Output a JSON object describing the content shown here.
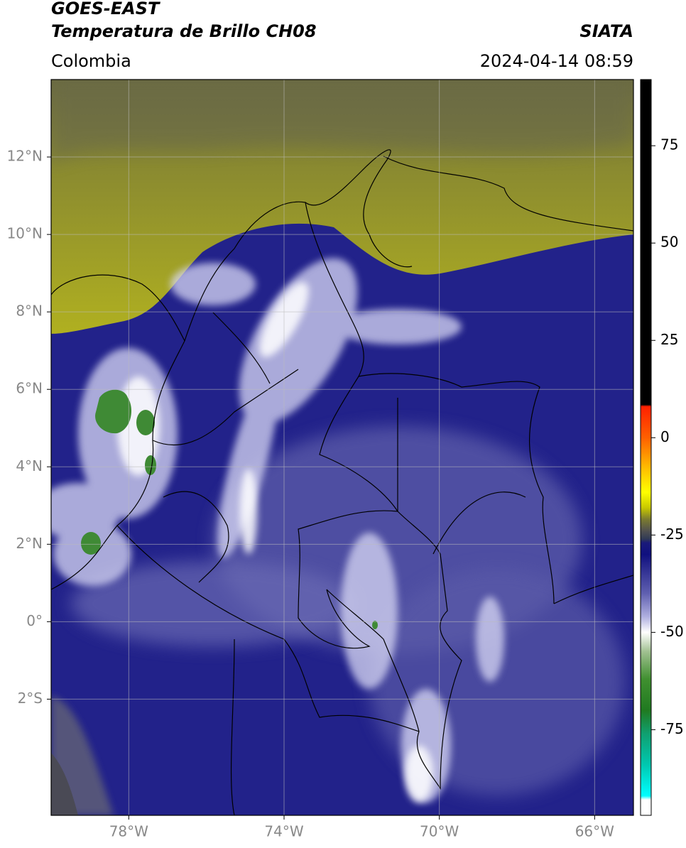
{
  "header": {
    "title": "GOES-EAST",
    "subtitle": "Temperatura de Brillo CH08",
    "source": "SIATA",
    "region": "Colombia",
    "timestamp": "2024-04-14 08:59"
  },
  "map": {
    "xlim": [
      -80,
      -65
    ],
    "ylim": [
      -5,
      14
    ],
    "xticks": [
      {
        "value": -78,
        "label": "78°W"
      },
      {
        "value": -74,
        "label": "74°W"
      },
      {
        "value": -70,
        "label": "70°W"
      },
      {
        "value": -66,
        "label": "66°W"
      }
    ],
    "yticks": [
      {
        "value": 12,
        "label": "12°N"
      },
      {
        "value": 10,
        "label": "10°N"
      },
      {
        "value": 8,
        "label": "8°N"
      },
      {
        "value": 6,
        "label": "6°N"
      },
      {
        "value": 4,
        "label": "4°N"
      },
      {
        "value": 2,
        "label": "2°N"
      },
      {
        "value": 0,
        "label": "0°"
      },
      {
        "value": -2,
        "label": "2°S"
      }
    ],
    "grid": true
  },
  "colorbar": {
    "clim": [
      -97,
      92
    ],
    "ticks": [
      75,
      50,
      25,
      0,
      -25,
      -50,
      -75
    ],
    "colormap": [
      {
        "value": 92,
        "color": "#000000"
      },
      {
        "value": 8.5,
        "color": "#000000"
      },
      {
        "value": 8,
        "color": "#ff2000"
      },
      {
        "value": 0,
        "color": "#ff6000"
      },
      {
        "value": -8,
        "color": "#ffc000"
      },
      {
        "value": -14,
        "color": "#ffff00"
      },
      {
        "value": -18,
        "color": "#c8c800"
      },
      {
        "value": -21,
        "color": "#7a7a30"
      },
      {
        "value": -24,
        "color": "#505050"
      },
      {
        "value": -26,
        "color": "#303a55"
      },
      {
        "value": -27,
        "color": "#1a1a7a"
      },
      {
        "value": -30,
        "color": "#10107f"
      },
      {
        "value": -40,
        "color": "#6060b0"
      },
      {
        "value": -46,
        "color": "#b0b0e0"
      },
      {
        "value": -50,
        "color": "#ffffff"
      },
      {
        "value": -55,
        "color": "#a0c090"
      },
      {
        "value": -62,
        "color": "#409030"
      },
      {
        "value": -70,
        "color": "#207a20"
      },
      {
        "value": -76,
        "color": "#10a070"
      },
      {
        "value": -84,
        "color": "#00c8b0"
      },
      {
        "value": -92,
        "color": "#00ffff"
      },
      {
        "value": -93,
        "color": "#ffffff"
      },
      {
        "value": -97,
        "color": "#ffffff"
      }
    ]
  }
}
